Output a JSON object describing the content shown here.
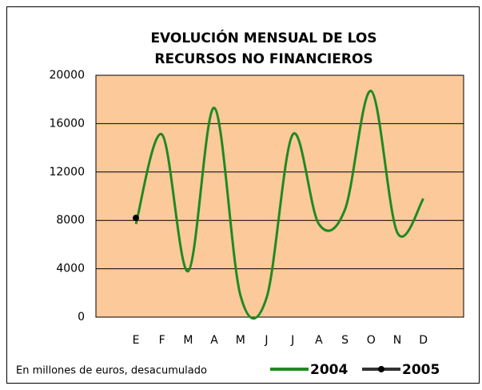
{
  "chart_data": {
    "type": "line",
    "title": [
      "EVOLUCIÓN MENSUAL DE LOS",
      "RECURSOS NO FINANCIEROS"
    ],
    "categories": [
      "E",
      "F",
      "M",
      "A",
      "M",
      "J",
      "J",
      "A",
      "S",
      "O",
      "N",
      "D"
    ],
    "series": [
      {
        "name": "2004",
        "color": "#1f8a1f",
        "values": [
          7700,
          15100,
          3800,
          17300,
          1800,
          1600,
          15100,
          7700,
          8900,
          18700,
          7000,
          9800
        ]
      },
      {
        "name": "2005",
        "color": "#000000",
        "values": [
          8200,
          null,
          null,
          null,
          null,
          null,
          null,
          null,
          null,
          null,
          null,
          null
        ]
      }
    ],
    "ylim": [
      0,
      20000
    ],
    "yticks": [
      0,
      4000,
      8000,
      12000,
      16000,
      20000
    ],
    "grid": true,
    "note": "En millones de euros, desacumulado"
  }
}
